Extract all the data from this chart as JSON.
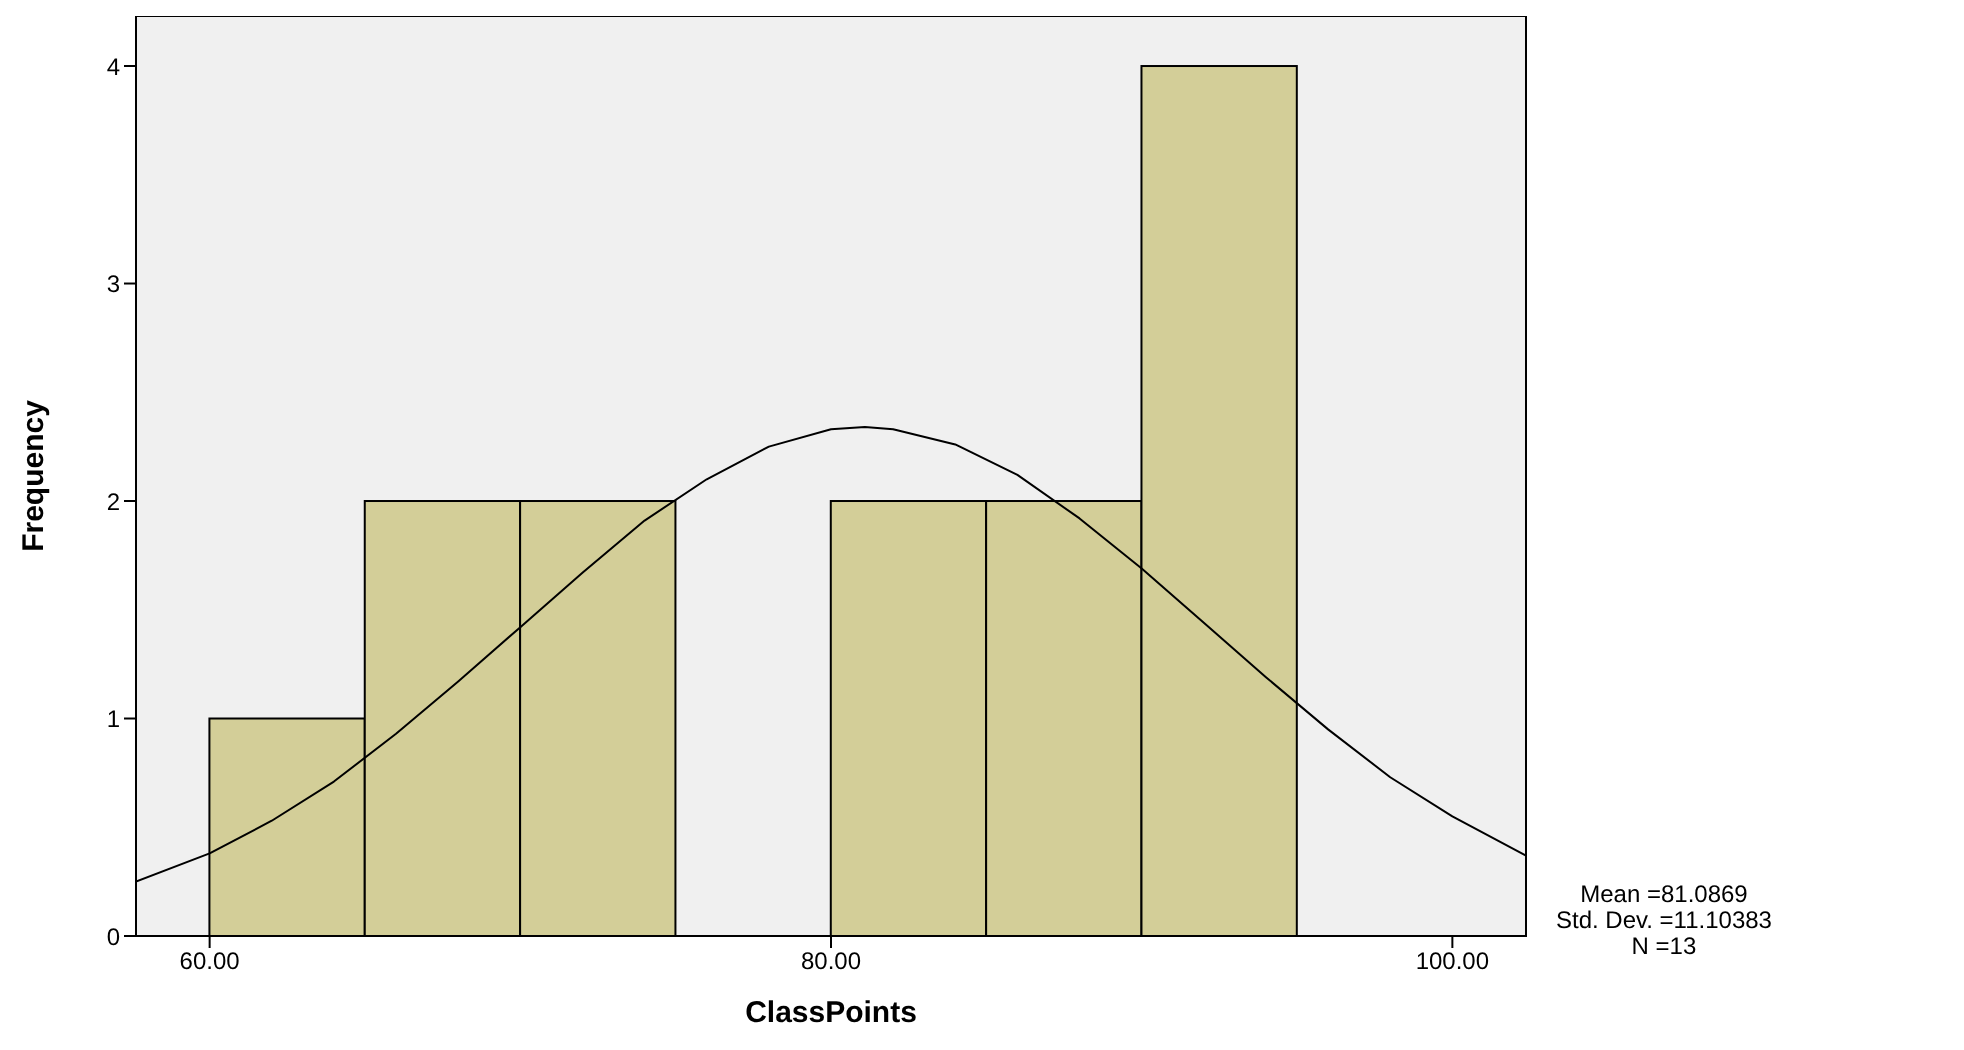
{
  "chart_data": {
    "type": "histogram",
    "xlabel": "ClassPoints",
    "ylabel": "Frequency",
    "annotations": [
      "Mean =81.0869",
      "Std. Dev. =11.10383",
      "N =13"
    ],
    "series": [
      {
        "type": "histogram",
        "color": "#d3ce98",
        "bins": [
          60,
          65,
          70,
          75,
          80,
          85,
          90,
          95
        ],
        "values": [
          1,
          2,
          2,
          0,
          2,
          2,
          4
        ]
      },
      {
        "type": "line",
        "color": "#000000",
        "x": [
          57.63,
          60,
          62,
          64,
          66,
          68,
          70,
          72,
          74,
          76,
          78,
          80,
          81.09,
          82,
          84,
          86,
          88,
          90,
          92,
          94,
          96,
          98,
          100,
          102.37
        ],
        "values": [
          0.25,
          0.38,
          0.53,
          0.71,
          0.93,
          1.17,
          1.42,
          1.67,
          1.91,
          2.1,
          2.25,
          2.33,
          2.34,
          2.33,
          2.26,
          2.12,
          1.92,
          1.69,
          1.44,
          1.19,
          0.95,
          0.73,
          0.55,
          0.37
        ]
      }
    ],
    "xlim": [
      57.63,
      102.37
    ],
    "xticks": [
      {
        "value": 60,
        "label": "60.00"
      },
      {
        "value": 80,
        "label": "80.00"
      },
      {
        "value": 100,
        "label": "100.00"
      }
    ],
    "ylim": [
      0,
      4.23
    ],
    "yticks": [
      0,
      1,
      2,
      3,
      4
    ],
    "legend": false,
    "marker": "none",
    "line_style": "solid"
  }
}
